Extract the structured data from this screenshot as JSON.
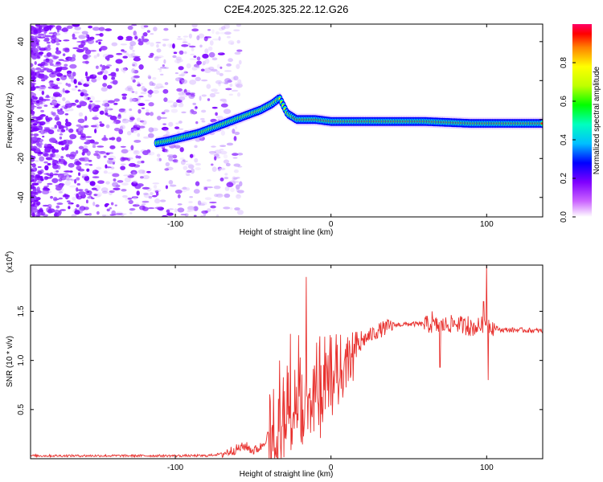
{
  "title": "C2E4.2025.325.22.12.G26",
  "chart_data": [
    {
      "type": "heatmap",
      "name": "spectrogram",
      "xlabel": "Height of straight line (km)",
      "ylabel": "Frequency (Hz)",
      "xlim": [
        -193,
        136
      ],
      "ylim": [
        -50,
        49
      ],
      "xticks": [
        -100,
        0,
        100
      ],
      "yticks": [
        -40,
        -20,
        0,
        20,
        40
      ],
      "description_series": {
        "ridge_x": [
          -112,
          -105,
          -95,
          -85,
          -75,
          -65,
          -55,
          -45,
          -38,
          -33,
          -28,
          -22,
          -10,
          0,
          10,
          30,
          60,
          90,
          100,
          120,
          136
        ],
        "ridge_y": [
          -12,
          -11,
          -9,
          -7,
          -4,
          -1,
          2,
          5,
          8,
          11,
          3,
          0,
          0,
          -1,
          -1,
          -1,
          -1,
          -2,
          -2,
          -2,
          -2
        ]
      },
      "colorbar": {
        "label": "Normalized spectral amplitude",
        "ticks": [
          "0.0",
          "0.2",
          "0.4",
          "0.6",
          "0.8"
        ],
        "range": [
          0,
          1
        ]
      }
    },
    {
      "type": "line",
      "name": "snr",
      "xlabel": "Height of straight line (km)",
      "ylabel": "SNR (10 * v/v)",
      "ylabel_scale": "(x10",
      "ylabel_exp": "4",
      "ylabel_close": ")",
      "xlim": [
        -193,
        136
      ],
      "ylim": [
        0,
        1.97
      ],
      "xticks": [
        -100,
        0,
        100
      ],
      "yticks": [
        0.5,
        1.0,
        1.5
      ],
      "ytick_labels": [
        "0.5",
        "1.0",
        "1.5"
      ],
      "series": [
        {
          "name": "SNR",
          "color": "#e8312e",
          "x": [
            -193,
            -150,
            -100,
            -80,
            -70,
            -60,
            -55,
            -50,
            -45,
            -40,
            -35,
            -30,
            -25,
            -22,
            -20,
            -18,
            -15,
            -10,
            -5,
            0,
            5,
            10,
            15,
            20,
            25,
            30,
            40,
            50,
            60,
            70,
            80,
            90,
            95,
            100,
            105,
            110,
            120,
            136
          ],
          "values": [
            0.03,
            0.03,
            0.03,
            0.03,
            0.05,
            0.1,
            0.13,
            0.08,
            0.12,
            0.25,
            0.4,
            0.55,
            0.65,
            0.8,
            0.95,
            0.6,
            0.7,
            0.8,
            0.85,
            0.9,
            1.0,
            1.05,
            1.1,
            1.2,
            1.25,
            1.3,
            1.36,
            1.37,
            1.37,
            1.35,
            1.38,
            1.33,
            1.35,
            1.38,
            1.33,
            1.31,
            1.31,
            1.3
          ],
          "spikes": [
            {
              "x": -16,
              "y": 1.85
            },
            {
              "x": -26,
              "y": 1.27
            },
            {
              "x": -33,
              "y": 1.0
            },
            {
              "x": 65,
              "y": 1.5
            },
            {
              "x": 70,
              "y": 0.93
            },
            {
              "x": 100,
              "y": 1.97
            },
            {
              "x": 98,
              "y": 1.6
            },
            {
              "x": 101,
              "y": 0.8
            },
            {
              "x": 88,
              "y": 1.45
            }
          ]
        }
      ]
    }
  ]
}
